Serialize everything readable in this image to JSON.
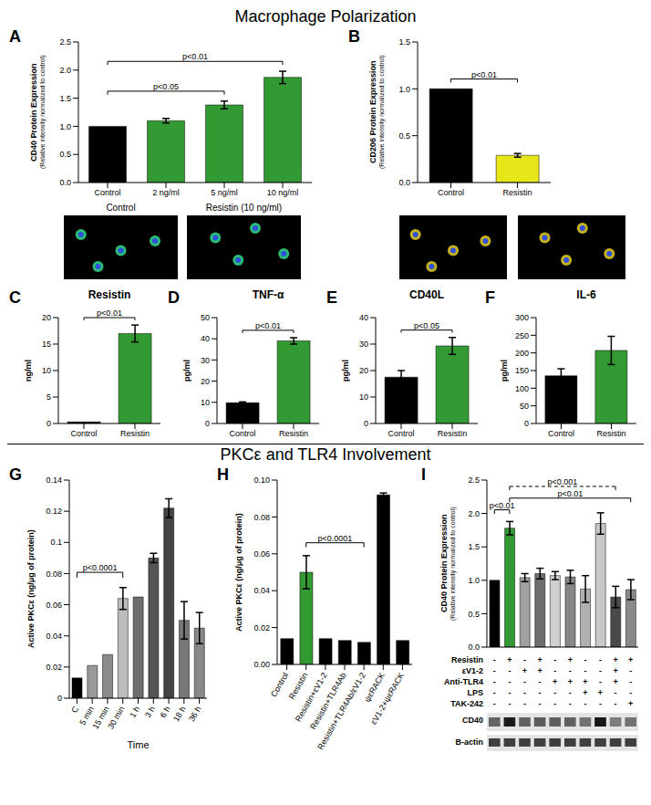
{
  "sections": [
    "Macrophage Polarization",
    "PKCε and TLR4 Involvement"
  ],
  "chart_data": [
    {
      "panel": "A",
      "type": "bar",
      "y_label": "CD40 Protein Expression",
      "y_sublabel": "(Relative intensity normalized to control)",
      "categories": [
        "Control",
        "2 ng/ml",
        "5 ng/ml",
        "10 ng/ml"
      ],
      "values": [
        1.0,
        1.1,
        1.38,
        1.87
      ],
      "errors": [
        null,
        0.04,
        0.07,
        0.11
      ],
      "colors": [
        "#000000",
        "#339933",
        "#339933",
        "#339933"
      ],
      "ylim": [
        0,
        2.5
      ],
      "yticks": [
        {
          "value": 0,
          "label": "0.0"
        },
        0.5,
        {
          "value": 1,
          "label": "1.0"
        },
        1.5,
        {
          "value": 2,
          "label": "2.0"
        },
        2.5
      ],
      "grid": false,
      "annotations": [
        {
          "text": "p<0.05",
          "from": 0,
          "to": 2
        },
        {
          "text": "p<0.01",
          "from": 0,
          "to": 3
        }
      ],
      "image_labels": [
        "Control",
        "Resistin (10 ng/ml)"
      ]
    },
    {
      "panel": "B",
      "type": "bar",
      "y_label": "CD206 Protein Expression",
      "y_sublabel": "(Relative intensity normalized to control)",
      "categories": [
        "Control",
        "Resistin"
      ],
      "values": [
        1.0,
        0.29
      ],
      "errors": [
        null,
        0.02
      ],
      "colors": [
        "#000000",
        "#e6e619"
      ],
      "ylim": [
        0,
        1.5
      ],
      "yticks": [
        {
          "value": 0,
          "label": "0.0"
        },
        0.5,
        {
          "value": 1,
          "label": "1.0"
        },
        1.5
      ],
      "grid": false,
      "annotations": [
        {
          "text": "p<0.01",
          "from": 0,
          "to": 1
        }
      ]
    },
    {
      "panel": "C",
      "type": "bar",
      "title": "Resistin",
      "y_label": "ng/ml",
      "categories": [
        "Control",
        "Resistin"
      ],
      "values": [
        0.3,
        17.0
      ],
      "errors": [
        null,
        1.6
      ],
      "colors": [
        "#000000",
        "#339933"
      ],
      "ylim": [
        0,
        20
      ],
      "yticks": [
        0,
        5,
        10,
        15,
        20
      ],
      "grid": false,
      "annotations": [
        {
          "text": "p<0.01",
          "from": 0,
          "to": 1
        }
      ]
    },
    {
      "panel": "D",
      "type": "bar",
      "title": "TNF-α",
      "y_label": "pg/ml",
      "categories": [
        "Control",
        "Resistin"
      ],
      "values": [
        9.8,
        39.0
      ],
      "errors": [
        0.4,
        1.5
      ],
      "colors": [
        "#000000",
        "#339933"
      ],
      "ylim": [
        0,
        50
      ],
      "yticks": [
        0,
        10,
        20,
        30,
        40,
        50
      ],
      "grid": false,
      "annotations": [
        {
          "text": "p<0.01",
          "from": 0,
          "to": 1
        }
      ]
    },
    {
      "panel": "E",
      "type": "bar",
      "title": "CD40L",
      "y_label": "pg/ml",
      "categories": [
        "Control",
        "ResistIn"
      ],
      "values": [
        17.5,
        29.3
      ],
      "errors": [
        2.5,
        3.2
      ],
      "colors": [
        "#000000",
        "#339933"
      ],
      "ylim": [
        0,
        40
      ],
      "yticks": [
        0,
        10,
        20,
        30,
        40
      ],
      "grid": false,
      "annotations": [
        {
          "text": "p<0.05",
          "from": 0,
          "to": 1
        }
      ]
    },
    {
      "panel": "F",
      "type": "bar",
      "title": "IL-6",
      "y_label": "pg/ml",
      "categories": [
        "Control",
        "Resistin"
      ],
      "values": [
        135,
        207
      ],
      "errors": [
        20,
        40
      ],
      "colors": [
        "#000000",
        "#339933"
      ],
      "ylim": [
        0,
        300
      ],
      "yticks": [
        0,
        50,
        100,
        150,
        200,
        250,
        300
      ],
      "grid": false,
      "annotations": []
    },
    {
      "panel": "G",
      "type": "bar",
      "y_label": "Active PKCε (ng/μg of protein)",
      "x_label": "Time",
      "categories": [
        "C",
        "5 min",
        "15 min",
        "30 min",
        "1 h",
        "3 h",
        "6 h",
        "18 h",
        "36 h"
      ],
      "values": [
        0.013,
        0.021,
        0.028,
        0.064,
        0.065,
        0.09,
        0.122,
        0.05,
        0.045
      ],
      "errors": [
        null,
        null,
        null,
        0.007,
        null,
        0.003,
        0.006,
        0.012,
        0.01
      ],
      "colors": [
        "#000000",
        "#999999",
        "#8a8a8a",
        "#bdbdbd",
        "#6e6e6e",
        "#555555",
        "#444444",
        "#777777",
        "#888888"
      ],
      "ylim": [
        0,
        0.14
      ],
      "yticks": [
        0,
        0.02,
        0.04,
        0.06,
        0.08,
        0.1,
        0.12,
        0.14
      ],
      "grid": false,
      "annotations": [
        {
          "text": "p<0.0001",
          "from": 0,
          "to": 3
        }
      ]
    },
    {
      "panel": "H",
      "type": "bar",
      "y_label": "Active PKCε (ng/μg of protein)",
      "categories": [
        "Control",
        "Resistin",
        "Resistin+εV1-2",
        "Resistin+TLR4Ab",
        "Resistin+TLR4Ab/εV1-2",
        "ψεRACK",
        "εV1-2+ψεRACK"
      ],
      "values": [
        0.014,
        0.05,
        0.014,
        0.013,
        0.012,
        0.092,
        0.013
      ],
      "errors": [
        null,
        0.009,
        null,
        null,
        null,
        0.001,
        null
      ],
      "colors": [
        "#000000",
        "#339933",
        "#000000",
        "#000000",
        "#000000",
        "#000000",
        "#000000"
      ],
      "ylim": [
        0,
        0.1
      ],
      "yticks": [
        {
          "value": 0,
          "label": "0.00"
        },
        0.02,
        0.04,
        0.06,
        0.08,
        {
          "value": 0.1,
          "label": "0.10"
        }
      ],
      "grid": false,
      "annotations": [
        {
          "text": "p<0.0001",
          "from": 1,
          "to": 4
        }
      ]
    },
    {
      "panel": "I",
      "type": "bar",
      "y_label": "CD40 Protein Expression",
      "y_sublabel": "(Relative intensity normalized to control)",
      "categories": [
        null,
        null,
        null,
        null,
        null,
        null,
        null,
        null,
        null,
        null
      ],
      "values": [
        1.0,
        1.78,
        1.04,
        1.1,
        1.07,
        1.05,
        0.87,
        1.85,
        0.75,
        0.86
      ],
      "errors": [
        null,
        0.1,
        0.06,
        0.08,
        0.06,
        0.1,
        0.2,
        0.16,
        0.16,
        0.15
      ],
      "colors": [
        "#000000",
        "#339933",
        "#a0a0a0",
        "#6e6e6e",
        "#d0d0d0",
        "#888888",
        "#b0b0b0",
        "#c8c8c8",
        "#4a4a4a",
        "#8a8a8a"
      ],
      "ylim": [
        0,
        2.5
      ],
      "yticks": [
        {
          "value": 0,
          "label": "0.0"
        },
        0.5,
        {
          "value": 1,
          "label": "1.0"
        },
        1.5,
        {
          "value": 2,
          "label": "2.0"
        },
        2.5
      ],
      "grid": false,
      "tick_labels": "y",
      "annotations": [
        {
          "text": "p<0.01",
          "from": 0,
          "to": 1
        },
        {
          "text": "p<0.01",
          "from": 1,
          "to": 9
        },
        {
          "text": "p<0.001",
          "from": 1,
          "to": 8,
          "line_style": "dashed"
        }
      ],
      "table": [
        {
          "label": "Resistin",
          "marks": [
            "-",
            "+",
            "-",
            "+",
            "-",
            "+",
            "-",
            "-",
            "+",
            "+"
          ]
        },
        {
          "label": "εV1-2",
          "marks": [
            "-",
            "-",
            "+",
            "+",
            "-",
            "-",
            "-",
            "-",
            "+",
            "-"
          ]
        },
        {
          "label": "Anti-TLR4",
          "marks": [
            "-",
            "-",
            "-",
            "-",
            "+",
            "+",
            "+",
            "-",
            "+",
            "-"
          ]
        },
        {
          "label": "LPS",
          "marks": [
            "-",
            "-",
            "-",
            "-",
            "-",
            "-",
            "+",
            "+",
            "-",
            "-"
          ]
        },
        {
          "label": "TAK-242",
          "marks": [
            "-",
            "-",
            "-",
            "-",
            "-",
            "-",
            "-",
            "-",
            "-",
            "+"
          ]
        }
      ],
      "blot_labels": [
        "CD40",
        "B-actin"
      ]
    }
  ]
}
